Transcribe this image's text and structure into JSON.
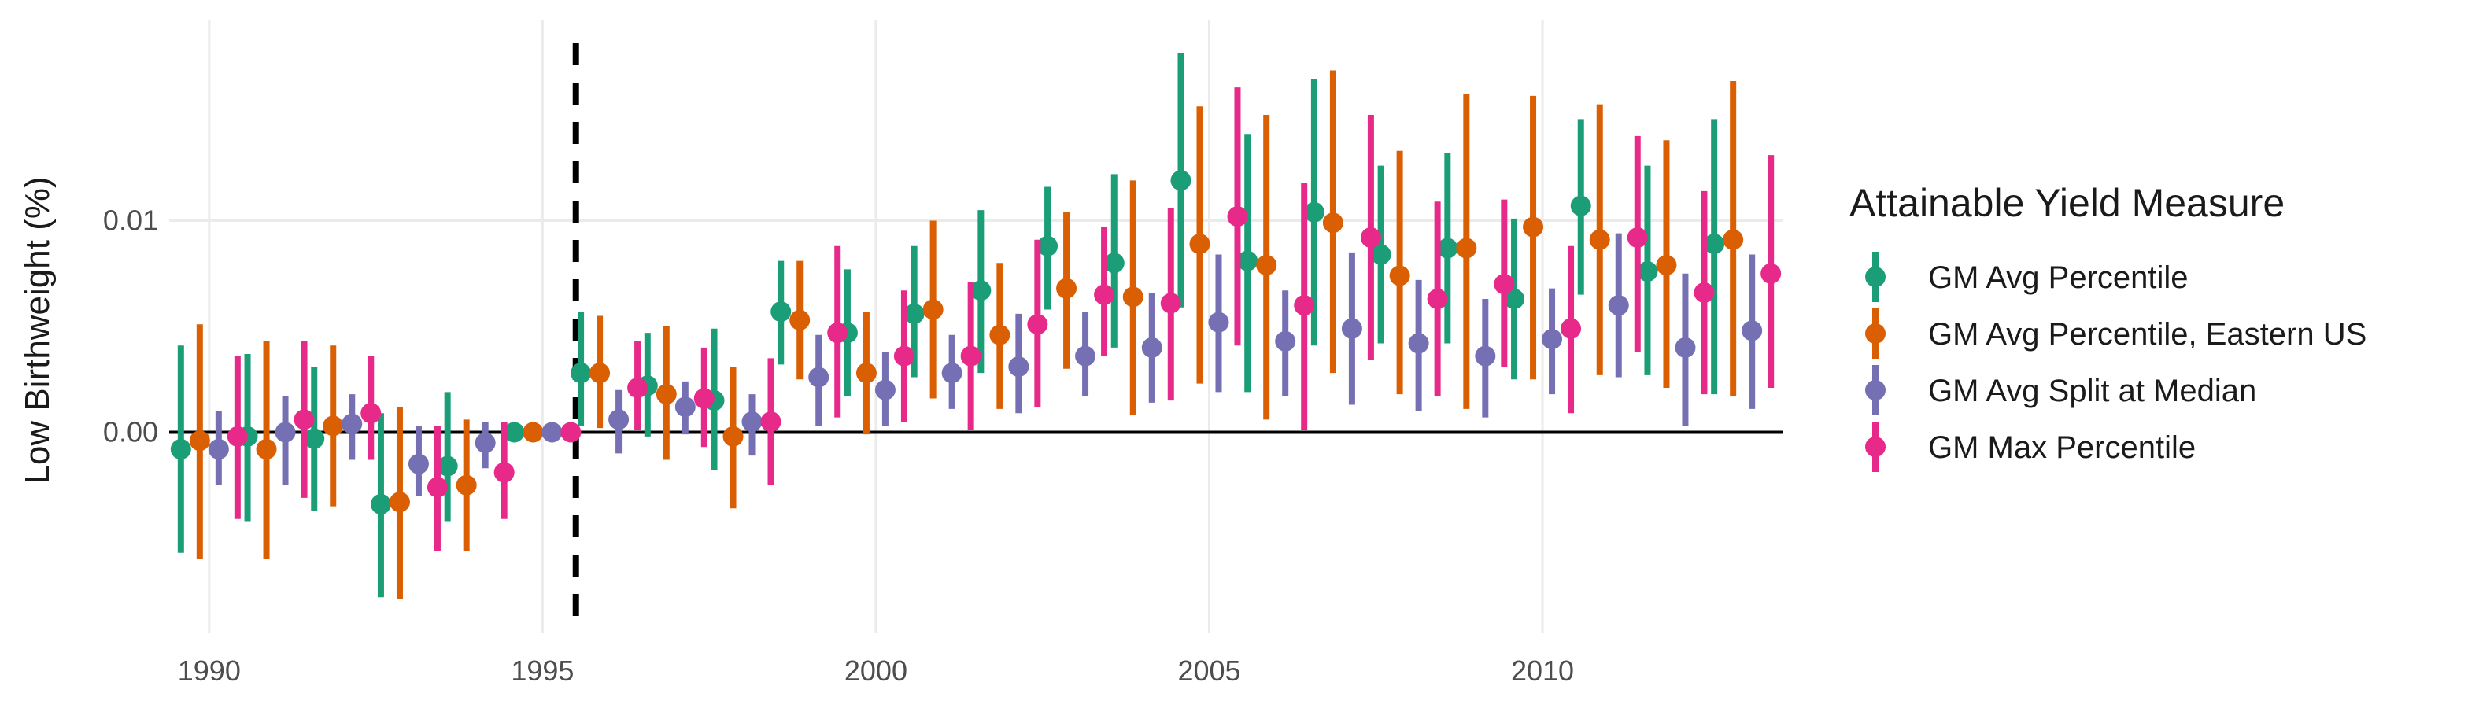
{
  "chart_data": {
    "type": "scatter",
    "title": "",
    "xlabel": "",
    "ylabel": "Low Birthweight (%)",
    "x_ticks": [
      "1990",
      "1995",
      "2000",
      "2005",
      "2010"
    ],
    "y_ticks": [
      "0.00",
      "0.01"
    ],
    "x_tick_values": [
      1990,
      1995,
      2000,
      2005,
      2010
    ],
    "y_tick_values": [
      0.0,
      0.01
    ],
    "xlim": [
      1989.4,
      2013.6
    ],
    "ylim": [
      -0.0095,
      0.0195
    ],
    "grid": true,
    "reference_hline": 0.0,
    "reference_vline": 1995.5,
    "legend_position": "right",
    "legend_title": "Attainable Yield Measure",
    "x": [
      1990,
      1991,
      1992,
      1993,
      1994,
      1995,
      1996,
      1997,
      1998,
      1999,
      2000,
      2001,
      2002,
      2003,
      2004,
      2005,
      2006,
      2007,
      2008,
      2009,
      2010,
      2011,
      2012,
      2013
    ],
    "series": [
      {
        "name": "GM Avg Percentile",
        "color": "#1b9e77",
        "estimate": [
          -0.0008,
          -0.0002,
          -0.0003,
          -0.0034,
          -0.0016,
          0.0,
          0.0028,
          0.0022,
          0.0015,
          0.0057,
          0.0047,
          0.0056,
          0.0067,
          0.0088,
          0.008,
          0.0119,
          0.0081,
          0.0104,
          0.0084,
          0.0087,
          0.0063,
          0.0107,
          0.0076,
          0.0089
        ],
        "lower": [
          -0.0057,
          -0.0042,
          -0.0037,
          -0.0078,
          -0.0042,
          0.0,
          0.0003,
          -0.0002,
          -0.0018,
          0.0032,
          0.0017,
          0.0026,
          0.0028,
          0.0058,
          0.004,
          0.0059,
          0.0019,
          0.0041,
          0.0042,
          0.0042,
          0.0025,
          0.0065,
          0.0027,
          0.0018
        ],
        "upper": [
          0.0041,
          0.0037,
          0.0031,
          0.0009,
          0.0019,
          0.0,
          0.0057,
          0.0047,
          0.0049,
          0.0081,
          0.0077,
          0.0088,
          0.0105,
          0.0116,
          0.0122,
          0.0179,
          0.0141,
          0.0167,
          0.0126,
          0.0132,
          0.0101,
          0.0148,
          0.0126,
          0.0148
        ]
      },
      {
        "name": "GM Avg Percentile, Eastern US",
        "color": "#d95f02",
        "estimate": [
          -0.0004,
          -0.0008,
          0.0003,
          -0.0033,
          -0.0025,
          0.0,
          0.0028,
          0.0018,
          -0.0002,
          0.0053,
          0.0028,
          0.0058,
          0.0046,
          0.0068,
          0.0064,
          0.0089,
          0.0079,
          0.0099,
          0.0074,
          0.0087,
          0.0097,
          0.0091,
          0.0079,
          0.0091
        ],
        "lower": [
          -0.006,
          -0.006,
          -0.0035,
          -0.0079,
          -0.0056,
          0.0,
          0.0002,
          -0.0013,
          -0.0036,
          0.0025,
          -0.0001,
          0.0016,
          0.0011,
          0.003,
          0.0008,
          0.0023,
          0.0006,
          0.0028,
          0.0018,
          0.0011,
          0.0025,
          0.0027,
          0.0021,
          0.0017
        ],
        "upper": [
          0.0051,
          0.0043,
          0.0041,
          0.0012,
          0.0006,
          0.0,
          0.0055,
          0.005,
          0.0031,
          0.0081,
          0.0057,
          0.01,
          0.008,
          0.0104,
          0.0119,
          0.0154,
          0.015,
          0.0171,
          0.0133,
          0.016,
          0.0159,
          0.0155,
          0.0138,
          0.0166
        ]
      },
      {
        "name": "GM Avg Split at Median",
        "color": "#7570b3",
        "estimate": [
          -0.0008,
          0.0,
          0.0004,
          -0.0015,
          -0.0005,
          0.0,
          0.0006,
          0.0012,
          0.0005,
          0.0026,
          0.002,
          0.0028,
          0.0031,
          0.0036,
          0.004,
          0.0052,
          0.0043,
          0.0049,
          0.0042,
          0.0036,
          0.0044,
          0.006,
          0.004,
          0.0048
        ],
        "lower": [
          -0.0025,
          -0.0025,
          -0.0013,
          -0.003,
          -0.0017,
          0.0,
          -0.001,
          -0.0001,
          -0.0011,
          0.0003,
          0.0003,
          0.0011,
          0.0009,
          0.0017,
          0.0014,
          0.0019,
          0.0017,
          0.0013,
          0.001,
          0.0007,
          0.0018,
          0.0026,
          0.0003,
          0.0011
        ],
        "upper": [
          0.001,
          0.0017,
          0.0018,
          0.0003,
          0.0005,
          0.0,
          0.002,
          0.0024,
          0.0018,
          0.0046,
          0.0038,
          0.0046,
          0.0056,
          0.0057,
          0.0066,
          0.0084,
          0.0067,
          0.0085,
          0.0072,
          0.0063,
          0.0068,
          0.0094,
          0.0075,
          0.0084
        ]
      },
      {
        "name": "GM Max Percentile",
        "color": "#e7298a",
        "estimate": [
          -0.0002,
          0.0006,
          0.0009,
          -0.0026,
          -0.0019,
          0.0,
          0.0021,
          0.0016,
          0.0005,
          0.0047,
          0.0036,
          0.0036,
          0.0051,
          0.0065,
          0.0061,
          0.0102,
          0.006,
          0.0092,
          0.0063,
          0.007,
          0.0049,
          0.0092,
          0.0066,
          0.0075
        ],
        "lower": [
          -0.0041,
          -0.0031,
          -0.0013,
          -0.0056,
          -0.0041,
          0.0,
          0.0001,
          -0.0007,
          -0.0025,
          0.0007,
          0.0005,
          0.0001,
          0.0012,
          0.0036,
          0.0015,
          0.0041,
          0.0001,
          0.0034,
          0.0017,
          0.0031,
          0.0009,
          0.0038,
          0.0018,
          0.0021
        ],
        "upper": [
          0.0036,
          0.0043,
          0.0036,
          0.0003,
          0.0005,
          0.0,
          0.0043,
          0.004,
          0.0035,
          0.0088,
          0.0067,
          0.0071,
          0.0091,
          0.0097,
          0.0106,
          0.0163,
          0.0118,
          0.015,
          0.0109,
          0.011,
          0.0088,
          0.014,
          0.0114,
          0.0131
        ]
      }
    ]
  }
}
